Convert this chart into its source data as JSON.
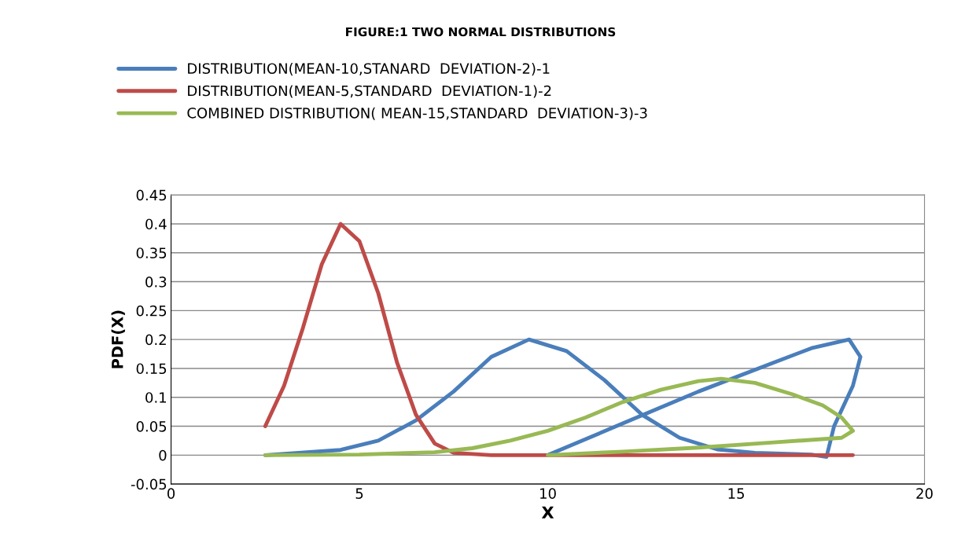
{
  "chart_data": {
    "type": "line",
    "title": "FIGURE:1 TWO NORMAL DISTRIBUTIONS",
    "xlabel": "X",
    "ylabel": "PDF(X)",
    "xlim": [
      0,
      20
    ],
    "xticks": [
      0,
      5,
      10,
      15,
      20
    ],
    "ylim": [
      -0.05,
      0.45
    ],
    "yticks": [
      -0.05,
      0,
      0.05,
      0.1,
      0.15,
      0.2,
      0.25,
      0.3,
      0.35,
      0.4,
      0.45
    ],
    "grid": "y",
    "legend": "top",
    "marker": "none",
    "line_style": "solid",
    "series": [
      {
        "name": "DISTRIBUTION(MEAN-10,STANARD  DEVIATION-2)-1",
        "color": "#4a7ebb",
        "x": [
          2.5,
          4.5,
          5.5,
          6.5,
          7.5,
          8.5,
          9.5,
          10.5,
          11.5,
          12.5,
          13.5,
          14.5,
          15.5,
          17.0,
          17.4,
          17.6,
          18.1,
          18.3,
          18.0,
          17.0,
          16.0,
          14.0,
          12.0,
          10.0
        ],
        "values": [
          0,
          0.009,
          0.025,
          0.06,
          0.11,
          0.17,
          0.2,
          0.18,
          0.13,
          0.07,
          0.03,
          0.01,
          0.004,
          0.001,
          -0.003,
          0.05,
          0.12,
          0.17,
          0.2,
          0.185,
          0.16,
          0.11,
          0.055,
          0
        ]
      },
      {
        "name": "DISTRIBUTION(MEAN-5,STANDARD  DEVIATION-1)-2",
        "color": "#be4b48",
        "x": [
          2.5,
          3.0,
          3.5,
          4.0,
          4.5,
          5.0,
          5.5,
          6.0,
          6.5,
          7.0,
          7.5,
          8.5,
          10.0,
          14.0,
          18.1
        ],
        "values": [
          0.05,
          0.12,
          0.22,
          0.33,
          0.4,
          0.37,
          0.28,
          0.16,
          0.07,
          0.02,
          0.004,
          0,
          0,
          0,
          0
        ]
      },
      {
        "name": "COMBINED DISTRIBUTION( MEAN-15,STANDARD  DEVIATION-3)-3",
        "color": "#98b954",
        "x": [
          2.5,
          5,
          7,
          8,
          9,
          10,
          11,
          12,
          13,
          14,
          14.6,
          15.5,
          16.5,
          17.3,
          17.8,
          18.1,
          17.8,
          16,
          14,
          12,
          10
        ],
        "values": [
          0,
          0.001,
          0.005,
          0.012,
          0.025,
          0.042,
          0.065,
          0.092,
          0.113,
          0.128,
          0.132,
          0.125,
          0.105,
          0.086,
          0.065,
          0.042,
          0.03,
          0.022,
          0.013,
          0.006,
          0
        ]
      }
    ]
  }
}
